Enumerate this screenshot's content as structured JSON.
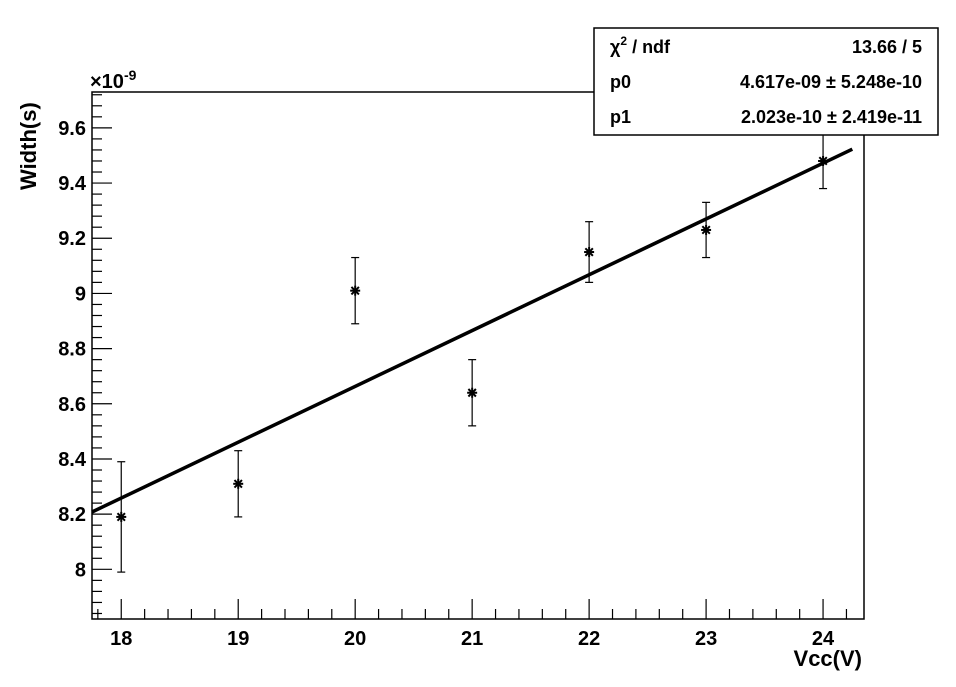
{
  "chart_data": {
    "type": "scatter",
    "xlabel": "Vcc(V)",
    "ylabel": "Width(s)",
    "y_multiplier": {
      "base": "×10",
      "exponent": "-9"
    },
    "xlim": [
      17.75,
      24.35
    ],
    "ylim": [
      7.82,
      9.73
    ],
    "x_ticks": [
      18,
      19,
      20,
      21,
      22,
      23,
      24
    ],
    "y_ticks": [
      8,
      8.2,
      8.4,
      8.6,
      8.8,
      9,
      9.2,
      9.4,
      9.6
    ],
    "y_tick_labels": [
      "8",
      "8.2",
      "8.4",
      "8.6",
      "8.8",
      "9",
      "9.2",
      "9.4",
      "9.6"
    ],
    "grid": false,
    "series": [
      {
        "x": [
          18,
          19,
          20,
          21,
          22,
          23,
          24
        ],
        "y": [
          8.19,
          8.31,
          9.01,
          8.64,
          9.15,
          9.23,
          9.48
        ],
        "yerr": [
          0.2,
          0.12,
          0.12,
          0.12,
          0.11,
          0.1,
          0.1
        ],
        "marker": "asterisk"
      }
    ],
    "fit": {
      "type": "linear",
      "intercept": 4.617,
      "slope": 0.2023
    }
  },
  "stats_box": {
    "rows": [
      {
        "label": "χ",
        "sup": "2",
        "label_suffix": " / ndf",
        "value": "13.66 / 5"
      },
      {
        "label": "p0",
        "value": "4.617e-09 ± 5.248e-10"
      },
      {
        "label": "p1",
        "value": "2.023e-10 ± 2.419e-11"
      }
    ]
  },
  "colors": {
    "axis": "#000000",
    "points": "#000000",
    "fit_line": "#000000",
    "background": "#ffffff"
  }
}
